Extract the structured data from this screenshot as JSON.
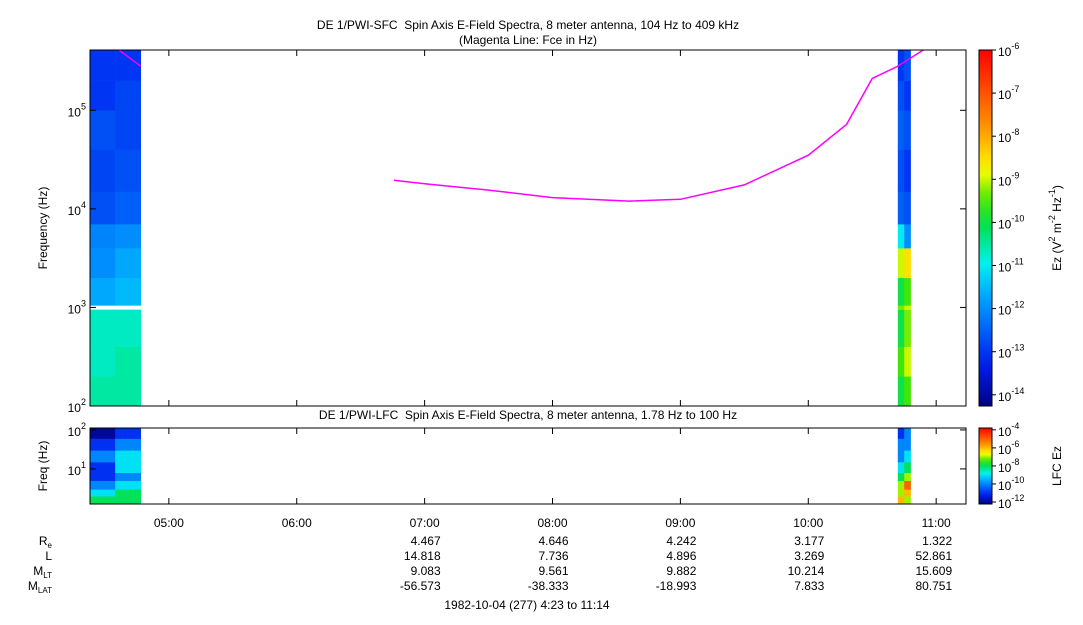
{
  "chart_data": {
    "type": "spectrogram",
    "xlim": [
      4.3833,
      11.2333
    ],
    "xticks": [
      {
        "value": 5,
        "label": "05:00"
      },
      {
        "value": 6,
        "label": "06:00"
      },
      {
        "value": 7,
        "label": "07:00"
      },
      {
        "value": 8,
        "label": "08:00"
      },
      {
        "value": 9,
        "label": "09:00"
      },
      {
        "value": 10,
        "label": "10:00"
      },
      {
        "value": 11,
        "label": "11:00"
      }
    ],
    "panels": [
      {
        "title": "DE 1/PWI-SFC  Spin Axis E-Field Spectra, 8 meter antenna, 104 Hz to 409 kHz",
        "subtitle": "(Magenta Line: Fce in Hz)",
        "ylabel": "Frequency (Hz)",
        "log_y": true,
        "ylim": [
          100,
          409000
        ],
        "yticks": [
          {
            "value": 100,
            "label": "10",
            "exponent": "2"
          },
          {
            "value": 1000,
            "label": "10",
            "exponent": "3"
          },
          {
            "value": 10000,
            "label": "10",
            "exponent": "4"
          },
          {
            "value": 100000,
            "label": "10",
            "exponent": "5"
          }
        ],
        "zlim": [
          5.5e-15,
          1e-06
        ],
        "zticks": [
          {
            "value": 1e-06,
            "label": "10",
            "exponent": "-6"
          },
          {
            "value": 1e-07,
            "label": "10",
            "exponent": "-7"
          },
          {
            "value": 1e-08,
            "label": "10",
            "exponent": "-8"
          },
          {
            "value": 1e-09,
            "label": "10",
            "exponent": "-9"
          },
          {
            "value": 1e-10,
            "label": "10",
            "exponent": "-10"
          },
          {
            "value": 1e-11,
            "label": "10",
            "exponent": "-11"
          },
          {
            "value": 1e-12,
            "label": "10",
            "exponent": "-12"
          },
          {
            "value": 1e-13,
            "label": "10",
            "exponent": "-13"
          },
          {
            "value": 1e-14,
            "label": "10",
            "exponent": "-14"
          }
        ],
        "zlabel": [
          "Ez (V",
          "2",
          " m",
          "-2",
          " Hz",
          "-1",
          ")"
        ],
        "y_edges": [
          100,
          200,
          400,
          950,
          1050,
          2000,
          4000,
          7000,
          15000,
          40000,
          100000,
          200000,
          409000
        ],
        "blocks": [
          {
            "x_edges": [
              4.3833,
              4.58,
              4.78
            ],
            "z": [
              [
                3e-11,
                3e-11
              ],
              [
                2e-11,
                3e-11
              ],
              [
                2e-11,
                2e-11
              ],
              [
                null,
                null
              ],
              [
                2e-12,
                3e-12
              ],
              [
                1e-12,
                2e-12
              ],
              [
                8e-13,
                1e-12
              ],
              [
                2e-13,
                3e-13
              ],
              [
                1.5e-13,
                2e-13
              ],
              [
                2e-13,
                1.5e-13
              ],
              [
                1e-13,
                1.5e-13
              ],
              [
                1e-13,
                1e-13
              ]
            ]
          },
          {
            "x_edges": [
              10.7,
              10.75,
              10.8
            ],
            "z": [
              [
                1e-10,
                3e-10
              ],
              [
                3e-10,
                1e-09
              ],
              [
                1e-10,
                5e-10
              ],
              [
                5e-10,
                1e-09
              ],
              [
                1e-10,
                3e-10
              ],
              [
                1e-09,
                3e-09
              ],
              [
                1e-11,
                1e-12
              ],
              [
                3e-13,
                2e-13
              ],
              [
                2e-13,
                1e-13
              ],
              [
                3e-13,
                2e-13
              ],
              [
                2e-13,
                1e-13
              ],
              [
                1e-13,
                2e-13
              ]
            ]
          }
        ],
        "line": {
          "color": "#ff00ff",
          "x": [
            4.61,
            4.78,
            5.5,
            6.76,
            7,
            7.5,
            8,
            8.6,
            9,
            9.5,
            10,
            10.3,
            10.5,
            10.7,
            10.9
          ],
          "values": [
            409000,
            280000,
            null,
            19500,
            18000,
            15500,
            13000,
            12000,
            12500,
            17500,
            35000,
            72000,
            210000,
            280000,
            410000
          ]
        }
      },
      {
        "title": "DE 1/PWI-LFC  Spin Axis E-Field Spectra, 8 meter antenna, 1.78 Hz to 100 Hz",
        "ylabel": "Freq (Hz)",
        "log_y": true,
        "ylim": [
          1.26,
          112
        ],
        "yticks": [
          {
            "value": 10,
            "label": "10",
            "exponent": "1"
          },
          {
            "value": 100,
            "label": "10",
            "exponent": "2"
          }
        ],
        "zlim": [
          6e-13,
          0.00016
        ],
        "zticks": [
          {
            "value": 0.0001,
            "label": "10",
            "exponent": "-4"
          },
          {
            "value": 1e-06,
            "label": "10",
            "exponent": "-6"
          },
          {
            "value": 1e-08,
            "label": "10",
            "exponent": "-8"
          },
          {
            "value": 1e-10,
            "label": "10",
            "exponent": "-10"
          },
          {
            "value": 1e-12,
            "label": "10",
            "exponent": "-12"
          }
        ],
        "zlabel": [
          "LFC Ez"
        ],
        "y_edges": [
          1.26,
          2,
          3,
          5,
          8,
          15,
          30,
          60,
          112
        ],
        "blocks": [
          {
            "x_edges": [
              4.3833,
              4.58,
              4.78
            ],
            "z": [
              [
                1e-08,
                1e-08
              ],
              [
                1e-09,
                1e-08
              ],
              [
                1e-10,
                1e-09
              ],
              [
                1e-11,
                1e-10
              ],
              [
                1e-11,
                1e-09
              ],
              [
                1e-10,
                1e-09
              ],
              [
                1e-11,
                1e-10
              ],
              [
                1e-12,
                1e-11
              ]
            ]
          },
          {
            "x_edges": [
              10.7,
              10.75,
              10.8
            ],
            "z": [
              [
                1e-06,
                1e-07
              ],
              [
                1e-07,
                1e-06
              ],
              [
                1e-07,
                1e-05
              ],
              [
                1e-08,
                1e-07
              ],
              [
                1e-09,
                1e-08
              ],
              [
                1e-10,
                1e-09
              ],
              [
                1e-10,
                1e-10
              ],
              [
                1e-11,
                1e-10
              ]
            ]
          }
        ]
      }
    ],
    "ephemeris": [
      {
        "label": "R",
        "sub": "e",
        "values": [
          null,
          null,
          4.467,
          4.646,
          4.242,
          3.177,
          1.322
        ]
      },
      {
        "label": "L",
        "values": [
          null,
          null,
          14.818,
          7.736,
          4.896,
          3.269,
          52.861
        ]
      },
      {
        "label": "M",
        "sub": "LT",
        "values": [
          null,
          null,
          9.083,
          9.561,
          9.882,
          10.214,
          15.609
        ]
      },
      {
        "label": "M",
        "sub": "LAT",
        "values": [
          null,
          null,
          -56.573,
          -38.333,
          -18.993,
          7.833,
          80.751
        ]
      }
    ],
    "footer": "1982-10-04 (277) 4:23 to 11:14"
  }
}
